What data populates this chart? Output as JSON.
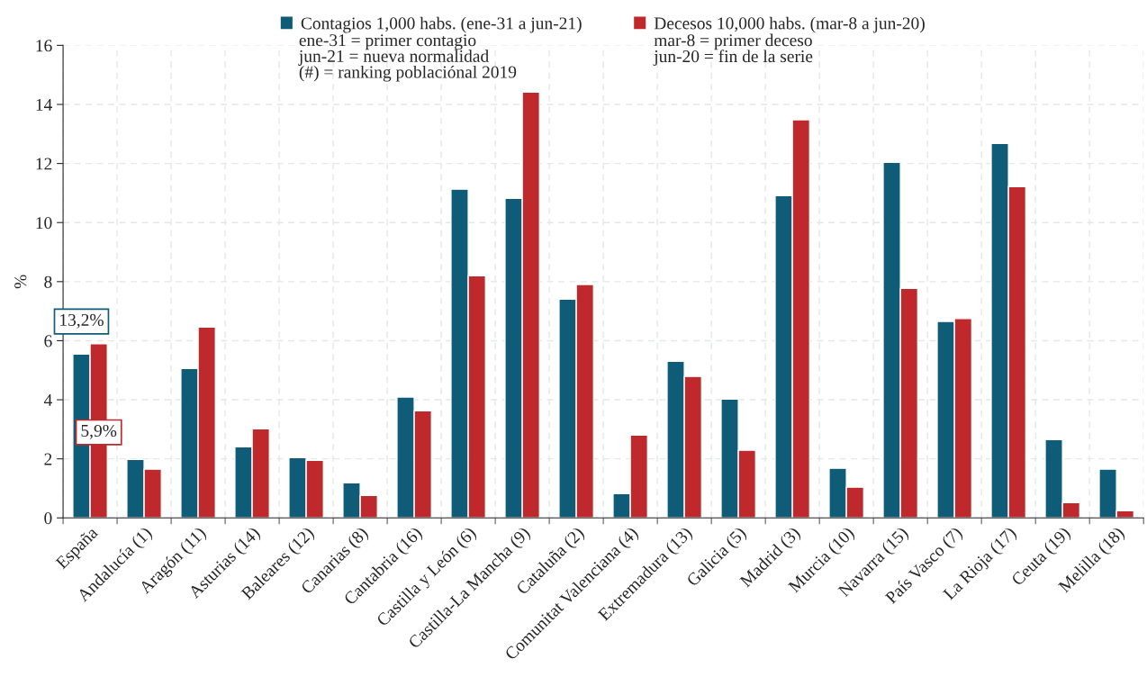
{
  "chart_data": {
    "type": "bar",
    "ylabel": "%",
    "categories": [
      "España",
      "Andalucía (1)",
      "Aragón (11)",
      "Asturias (14)",
      "Baleares (12)",
      "Canarias (8)",
      "Cantabria (16)",
      "Castilla y León (6)",
      "Castilla-La Mancha (9)",
      "Cataluña (2)",
      "Comunitat Valenciana (4)",
      "Extremadura (13)",
      "Galicia (5)",
      "Madrid (3)",
      "Murcia (10)",
      "Navarra (15)",
      "País Vasco (7)",
      "La Rioja (17)",
      "Ceuta (19)",
      "Melilla (18)"
    ],
    "series": [
      {
        "name": "Contagios 1,000 habs. (ene-31 a jun-21)",
        "color": "#0e5c78",
        "values": [
          5.55,
          1.98,
          5.06,
          2.41,
          2.04,
          1.19,
          4.09,
          11.13,
          10.82,
          7.41,
          0.82,
          5.3,
          4.02,
          10.91,
          1.68,
          12.04,
          6.65,
          12.68,
          2.65,
          1.65
        ]
      },
      {
        "name": "Decesos 10,000 habs. (mar-8 a jun-20)",
        "color": "#c0292c",
        "values": [
          5.9,
          1.65,
          6.46,
          3.02,
          1.95,
          0.76,
          3.63,
          8.2,
          14.42,
          7.9,
          2.8,
          4.79,
          2.29,
          13.48,
          1.04,
          7.77,
          6.75,
          11.22,
          0.52,
          0.24
        ]
      }
    ],
    "annotations": [
      "13,2%",
      "5,9%",
      "ene-31 = primer contagio\njun-21 = nueva normalidad\n(#) = ranking poblaciónal 2019",
      "mar-8 = primer deceso\njun-20 = fin de la serie"
    ],
    "ylim": [
      0,
      16
    ],
    "yticks": [
      0,
      2,
      4,
      6,
      8,
      10,
      12,
      14,
      16
    ],
    "grid": true,
    "legend": "top"
  }
}
